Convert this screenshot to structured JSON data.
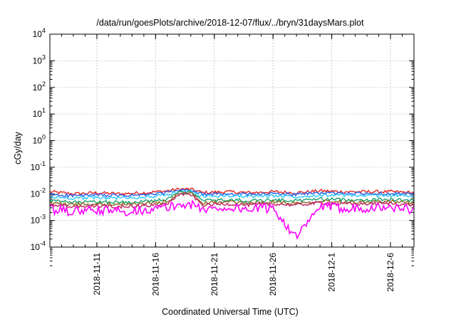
{
  "chart_data": {
    "type": "line",
    "title": "/data/run/goesPlots/archive/2018-12-07/flux/../bryn/31daysMars.plot",
    "xlabel": "Coordinated Universal Time (UTC)",
    "ylabel": "cGy/day",
    "yscale": "log",
    "ylim": [
      0.0001,
      10000
    ],
    "xlim": [
      "2018-11-07",
      "2018-12-08"
    ],
    "grid": true,
    "x_ticks": [
      "2018-11-11",
      "2018-11-16",
      "2018-11-21",
      "2018-11-26",
      "2018-12-1",
      "2018-12-6"
    ],
    "y_ticks": [
      {
        "base": "10",
        "exp": "4"
      },
      {
        "base": "10",
        "exp": "3"
      },
      {
        "base": "10",
        "exp": "2"
      },
      {
        "base": "10",
        "exp": "1"
      },
      {
        "base": "10",
        "exp": "0"
      },
      {
        "base": "10",
        "exp": "-1"
      },
      {
        "base": "10",
        "exp": "-2"
      },
      {
        "base": "10",
        "exp": "-3"
      },
      {
        "base": "10",
        "exp": "-4"
      }
    ],
    "x": [
      "2018-11-07",
      "2018-11-09",
      "2018-11-11",
      "2018-11-13",
      "2018-11-15",
      "2018-11-17",
      "2018-11-18",
      "2018-11-19",
      "2018-11-20",
      "2018-11-22",
      "2018-11-24",
      "2018-11-26",
      "2018-11-28",
      "2018-11-30",
      "2018-12-02",
      "2018-12-04",
      "2018-12-06",
      "2018-12-08"
    ],
    "series": [
      {
        "color": "#e8201c",
        "values": [
          0.012,
          0.01,
          0.011,
          0.01,
          0.011,
          0.013,
          0.015,
          0.015,
          0.011,
          0.012,
          0.011,
          0.012,
          0.011,
          0.013,
          0.012,
          0.012,
          0.012,
          0.011
        ]
      },
      {
        "color": "#2a5ee8",
        "values": [
          0.0095,
          0.0085,
          0.009,
          0.0085,
          0.009,
          0.011,
          0.0135,
          0.0135,
          0.0095,
          0.01,
          0.0095,
          0.01,
          0.0095,
          0.011,
          0.0105,
          0.01,
          0.0105,
          0.0095
        ]
      },
      {
        "color": "#28c8ff",
        "values": [
          0.0075,
          0.007,
          0.0072,
          0.007,
          0.0075,
          0.009,
          0.0125,
          0.0125,
          0.008,
          0.0085,
          0.008,
          0.0085,
          0.008,
          0.009,
          0.0088,
          0.0085,
          0.009,
          0.008
        ]
      },
      {
        "color": "#18a070",
        "values": [
          0.0055,
          0.0048,
          0.005,
          0.0048,
          0.0052,
          0.006,
          0.0115,
          0.0115,
          0.0055,
          0.006,
          0.0055,
          0.006,
          0.0055,
          0.0065,
          0.006,
          0.006,
          0.0062,
          0.0055
        ]
      },
      {
        "color": "#8a6a20",
        "values": [
          0.0045,
          0.004,
          0.0042,
          0.004,
          0.0043,
          0.005,
          0.0105,
          0.0105,
          0.0045,
          0.005,
          0.0045,
          0.005,
          0.0045,
          0.0055,
          0.005,
          0.005,
          0.0052,
          0.0045
        ]
      },
      {
        "color": "#c02060",
        "values": [
          0.0038,
          0.0033,
          0.0035,
          0.0033,
          0.0036,
          0.0042,
          0.0095,
          0.0095,
          0.0038,
          0.0042,
          0.0038,
          0.0042,
          0.0038,
          0.0046,
          0.0042,
          0.0042,
          0.0044,
          0.0038
        ]
      },
      {
        "color": "#ff00ff",
        "values": [
          0.0025,
          0.0022,
          0.0024,
          0.0022,
          0.0025,
          0.003,
          0.004,
          0.004,
          0.0026,
          0.003,
          0.0027,
          0.003,
          0.00022,
          0.0033,
          0.003,
          0.003,
          0.0031,
          0.0026
        ]
      }
    ]
  }
}
